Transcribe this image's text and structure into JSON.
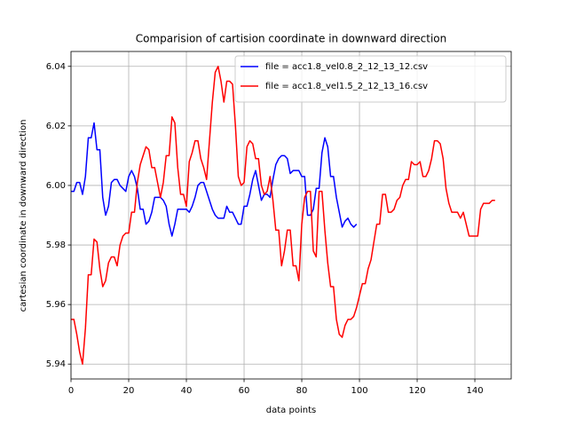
{
  "chart_data": {
    "type": "line",
    "title": "Comparision of cartision coordinate in downward direction",
    "x_label": "data points",
    "y_label": "cartesian coordinate in downward direction",
    "x": [
      0,
      1,
      2,
      3,
      4,
      5,
      6,
      7,
      8,
      9,
      10,
      11,
      12,
      13,
      14,
      15,
      16,
      17,
      18,
      19,
      20,
      21,
      22,
      23,
      24,
      25,
      26,
      27,
      28,
      29,
      30,
      31,
      32,
      33,
      34,
      35,
      36,
      37,
      38,
      39,
      40,
      41,
      42,
      43,
      44,
      45,
      46,
      47,
      48,
      49,
      50,
      51,
      52,
      53,
      54,
      55,
      56,
      57,
      58,
      59,
      60,
      61,
      62,
      63,
      64,
      65,
      66,
      67,
      68,
      69,
      70,
      71,
      72,
      73,
      74,
      75,
      76,
      77,
      78,
      79,
      80,
      81,
      82,
      83,
      84,
      85,
      86,
      87,
      88,
      89,
      90,
      91,
      92,
      93,
      94,
      95,
      96,
      97,
      98,
      99,
      100,
      101,
      102,
      103,
      104,
      105,
      106,
      107,
      108,
      109,
      110,
      111,
      112,
      113,
      114,
      115,
      116,
      117,
      118,
      119,
      120,
      121,
      122,
      123,
      124,
      125,
      126,
      127,
      128,
      129,
      130,
      131,
      132,
      133,
      134,
      135,
      136,
      137,
      138,
      139,
      140,
      141,
      142,
      143,
      144,
      145,
      146,
      147
    ],
    "series": [
      {
        "name": "file = acc1.8_vel0.8_2_12_13_12.csv",
        "color": "#0000ff",
        "values": [
          5.998,
          5.998,
          6.001,
          6.001,
          5.997,
          6.003,
          6.016,
          6.016,
          6.021,
          6.012,
          6.012,
          5.996,
          5.99,
          5.993,
          6.001,
          6.002,
          6.002,
          6.0,
          5.999,
          5.998,
          6.003,
          6.005,
          6.003,
          5.999,
          5.992,
          5.992,
          5.987,
          5.988,
          5.991,
          5.996,
          5.996,
          5.996,
          5.995,
          5.993,
          5.987,
          5.983,
          5.987,
          5.992,
          5.992,
          5.992,
          5.992,
          5.991,
          5.993,
          5.996,
          6.0,
          6.001,
          6.001,
          5.998,
          5.995,
          5.992,
          5.99,
          5.989,
          5.989,
          5.989,
          5.993,
          5.991,
          5.991,
          5.989,
          5.987,
          5.987,
          5.993,
          5.993,
          5.997,
          6.002,
          6.005,
          6.0,
          5.995,
          5.997,
          5.997,
          5.996,
          6.002,
          6.007,
          6.009,
          6.01,
          6.01,
          6.009,
          6.004,
          6.005,
          6.005,
          6.005,
          6.003,
          6.003,
          5.99,
          5.99,
          5.992,
          5.999,
          5.999,
          6.011,
          6.016,
          6.013,
          6.003,
          6.003,
          5.996,
          5.991,
          5.986,
          5.988,
          5.989,
          5.987,
          5.986,
          5.987,
          null,
          null,
          null,
          null,
          null,
          null,
          null,
          null,
          null,
          null,
          null,
          null,
          null,
          null,
          null,
          null,
          null,
          null,
          null,
          null,
          null,
          null,
          null,
          null,
          null,
          null,
          null,
          null,
          null,
          null,
          null,
          null,
          null,
          null,
          null,
          null,
          null,
          null,
          null,
          null,
          null,
          null,
          null,
          null,
          null,
          null,
          null,
          null
        ]
      },
      {
        "name": "file = acc1.8_vel1.5_2_12_13_16.csv",
        "color": "#ff0000",
        "values": [
          5.955,
          5.955,
          5.95,
          5.944,
          5.94,
          5.952,
          5.97,
          5.97,
          5.982,
          5.981,
          5.972,
          5.966,
          5.968,
          5.974,
          5.976,
          5.976,
          5.973,
          5.98,
          5.983,
          5.984,
          5.984,
          5.991,
          5.991,
          6.001,
          6.007,
          6.01,
          6.013,
          6.012,
          6.006,
          6.006,
          6.001,
          5.996,
          6.001,
          6.01,
          6.01,
          6.023,
          6.021,
          6.006,
          5.997,
          5.997,
          5.993,
          6.008,
          6.011,
          6.015,
          6.015,
          6.009,
          6.006,
          6.002,
          6.015,
          6.028,
          6.038,
          6.04,
          6.035,
          6.028,
          6.035,
          6.035,
          6.034,
          6.02,
          6.003,
          6.0,
          6.001,
          6.013,
          6.015,
          6.014,
          6.009,
          6.009,
          6.0,
          5.997,
          5.998,
          6.003,
          5.995,
          5.985,
          5.985,
          5.973,
          5.978,
          5.985,
          5.985,
          5.973,
          5.973,
          5.968,
          5.987,
          5.996,
          5.998,
          5.998,
          5.978,
          5.976,
          5.998,
          5.998,
          5.985,
          5.974,
          5.966,
          5.966,
          5.955,
          5.95,
          5.949,
          5.953,
          5.955,
          5.955,
          5.956,
          5.959,
          5.963,
          5.967,
          5.967,
          5.972,
          5.975,
          5.981,
          5.987,
          5.987,
          5.997,
          5.997,
          5.991,
          5.991,
          5.992,
          5.995,
          5.996,
          6.0,
          6.002,
          6.002,
          6.008,
          6.007,
          6.007,
          6.008,
          6.003,
          6.003,
          6.005,
          6.009,
          6.015,
          6.015,
          6.014,
          6.009,
          5.999,
          5.994,
          5.991,
          5.991,
          5.991,
          5.989,
          5.991,
          5.987,
          5.983,
          5.983,
          5.983,
          5.983,
          5.992,
          5.994,
          5.994,
          5.994,
          5.995,
          5.995
        ]
      }
    ],
    "xlim": [
      0,
      152.6
    ],
    "xticks": [
      0,
      20,
      40,
      60,
      80,
      100,
      120,
      140
    ],
    "ylim": [
      5.935,
      6.045
    ],
    "yticks": [
      5.94,
      5.96,
      5.98,
      {
        "value": 6.0,
        "label": "6.00"
      },
      6.02,
      6.04
    ],
    "grid": true,
    "legend": "upper right"
  }
}
